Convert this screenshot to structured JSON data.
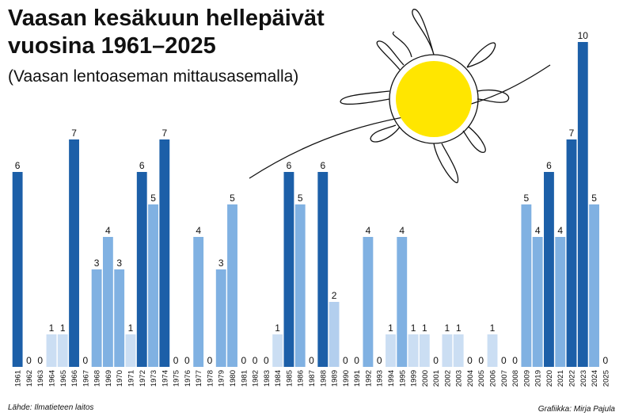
{
  "chart_data": {
    "type": "bar",
    "title": [
      "Vaasan kesäkuun hellepäivät",
      "vuosina 1961–2025"
    ],
    "subtitle": "(Vaasan lentoaseman mittausasemalla)",
    "source": "Lähde: Ilmatieteen laitos",
    "credit": "Grafiikka: Mirja Pajula",
    "categories": [
      "1961",
      "1962",
      "1963",
      "1964",
      "1965",
      "1966",
      "1967",
      "1968",
      "1969",
      "1970",
      "1971",
      "1972",
      "1973",
      "1974",
      "1975",
      "1976",
      "1977",
      "1978",
      "1979",
      "1980",
      "1981",
      "1982",
      "1983",
      "1984",
      "1985",
      "1986",
      "1987",
      "1988",
      "1989",
      "1990",
      "1991",
      "1992",
      "1993",
      "1994",
      "1995",
      "1999",
      "2000",
      "2001",
      "2002",
      "2003",
      "2004",
      "2005",
      "2006",
      "2007",
      "2008",
      "2009",
      "2019",
      "2020",
      "2021",
      "2022",
      "2023",
      "2024",
      "2025"
    ],
    "values": [
      6,
      0,
      0,
      1,
      1,
      7,
      0,
      3,
      4,
      3,
      1,
      6,
      5,
      7,
      0,
      0,
      4,
      0,
      3,
      5,
      0,
      0,
      0,
      1,
      6,
      5,
      0,
      6,
      2,
      0,
      0,
      4,
      0,
      1,
      4,
      1,
      1,
      0,
      1,
      1,
      0,
      0,
      1,
      0,
      0,
      5,
      4,
      6,
      4,
      7,
      10,
      5,
      0
    ],
    "colors": [
      "#1c5fa8",
      "#1c5fa8",
      "#1c5fa8",
      "#cbdef3",
      "#cbdef3",
      "#1c5fa8",
      "#1c5fa8",
      "#80b1e2",
      "#80b1e2",
      "#80b1e2",
      "#cbdef3",
      "#1c5fa8",
      "#80b1e2",
      "#1c5fa8",
      "#1c5fa8",
      "#1c5fa8",
      "#80b1e2",
      "#1c5fa8",
      "#80b1e2",
      "#80b1e2",
      "#1c5fa8",
      "#1c5fa8",
      "#1c5fa8",
      "#cbdef3",
      "#1c5fa8",
      "#80b1e2",
      "#1c5fa8",
      "#1c5fa8",
      "#b3cfee",
      "#1c5fa8",
      "#1c5fa8",
      "#80b1e2",
      "#1c5fa8",
      "#cbdef3",
      "#80b1e2",
      "#cbdef3",
      "#cbdef3",
      "#1c5fa8",
      "#cbdef3",
      "#cbdef3",
      "#1c5fa8",
      "#1c5fa8",
      "#cbdef3",
      "#1c5fa8",
      "#1c5fa8",
      "#80b1e2",
      "#80b1e2",
      "#1c5fa8",
      "#80b1e2",
      "#1c5fa8",
      "#1c5fa8",
      "#80b1e2",
      "#1c5fa8"
    ],
    "ylim": [
      0,
      10
    ]
  }
}
